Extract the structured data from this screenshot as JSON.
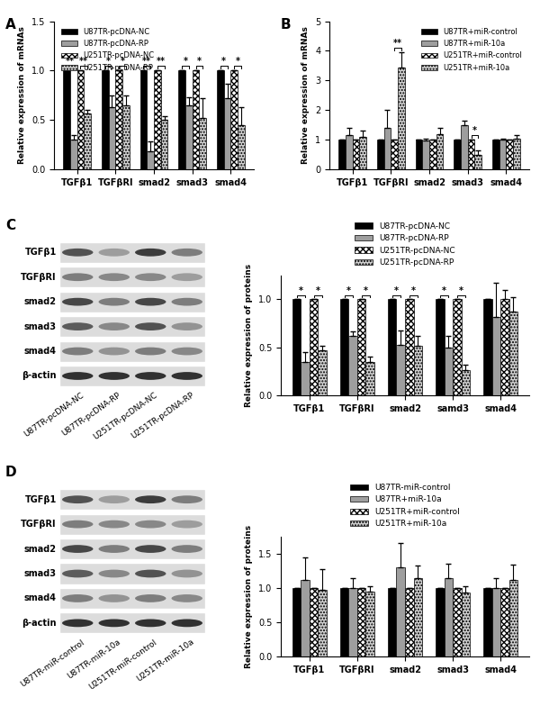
{
  "chart_data": [
    {
      "panel_label": "A",
      "type": "bar",
      "y_label": "Relative expression of mRNAs",
      "categories": [
        "TGFβ1",
        "TGFβRI",
        "smad2",
        "smad3",
        "smad4"
      ],
      "ylim": [
        0,
        1.5
      ],
      "yticks": [
        {
          "value": 0,
          "label": "0.0"
        },
        {
          "value": 0.5,
          "label": "0.5"
        },
        {
          "value": 1.0,
          "label": "1.0"
        },
        {
          "value": 1.5,
          "label": "1.5"
        }
      ],
      "legend": "upper left",
      "series": [
        {
          "name": "U87TR-pcDNA-NC",
          "color": "#000000",
          "values": [
            1,
            1,
            1,
            1,
            1
          ],
          "errors": [
            0,
            0,
            0,
            0,
            0
          ]
        },
        {
          "name": "U87TR-pcDNA-RP",
          "color": "#9e9e9e",
          "values": [
            0.3,
            0.63,
            0.18,
            0.65,
            0.72
          ],
          "errors": [
            0.05,
            0.12,
            0.1,
            0.08,
            0.15
          ]
        },
        {
          "name": "U251TR-pcDNA-NC",
          "color": "#ffffff",
          "values": [
            1,
            1,
            1,
            1,
            1
          ],
          "errors": [
            0,
            0,
            0,
            0,
            0
          ]
        },
        {
          "name": "U251TR-pcDNA-RP",
          "color": "#d0d0d0",
          "values": [
            0.57,
            0.65,
            0.5,
            0.52,
            0.45
          ],
          "errors": [
            0.03,
            0.1,
            0.04,
            0.2,
            0.18
          ]
        }
      ],
      "annotations": [
        {
          "category": 0,
          "series": [
            0,
            1
          ],
          "text": "**"
        },
        {
          "category": 0,
          "series": [
            2,
            3
          ],
          "text": "**"
        },
        {
          "category": 1,
          "series": [
            0,
            1
          ],
          "text": "*"
        },
        {
          "category": 1,
          "series": [
            2,
            3
          ],
          "text": "*"
        },
        {
          "category": 2,
          "series": [
            0,
            1
          ],
          "text": "**"
        },
        {
          "category": 2,
          "series": [
            2,
            3
          ],
          "text": "**"
        },
        {
          "category": 3,
          "series": [
            0,
            1
          ],
          "text": "*"
        },
        {
          "category": 3,
          "series": [
            2,
            3
          ],
          "text": "*"
        },
        {
          "category": 4,
          "series": [
            0,
            1
          ],
          "text": "*"
        },
        {
          "category": 4,
          "series": [
            2,
            3
          ],
          "text": "*"
        }
      ]
    },
    {
      "panel_label": "B",
      "type": "bar",
      "y_label": "Relative expression of mRNAs",
      "categories": [
        "TGFβ1",
        "TGFβRI",
        "smad2",
        "smad3",
        "smad4"
      ],
      "ylim": [
        0,
        5
      ],
      "yticks": [
        0,
        1,
        2,
        3,
        4,
        5
      ],
      "legend": "upper right",
      "series": [
        {
          "name": "U87TR+miR-control",
          "color": "#000000",
          "values": [
            1,
            1,
            1,
            1,
            1
          ],
          "errors": [
            0,
            0,
            0,
            0,
            0
          ]
        },
        {
          "name": "U87TR+miR-10a",
          "color": "#9e9e9e",
          "values": [
            1.15,
            1.4,
            0.98,
            1.5,
            1.0
          ],
          "errors": [
            0.25,
            0.6,
            0.05,
            0.15,
            0.05
          ]
        },
        {
          "name": "U251TR+miR-control",
          "color": "#ffffff",
          "values": [
            1,
            1,
            1,
            1,
            1
          ],
          "errors": [
            0,
            0,
            0,
            0,
            0
          ]
        },
        {
          "name": "U251TR+miR-10a",
          "color": "#d0d0d0",
          "values": [
            1.1,
            3.45,
            1.2,
            0.5,
            1.05
          ],
          "errors": [
            0.2,
            0.5,
            0.2,
            0.15,
            0.1
          ]
        }
      ],
      "annotations": [
        {
          "category": 1,
          "series": [
            2,
            3
          ],
          "text": "**"
        },
        {
          "category": 3,
          "series": [
            2,
            3
          ],
          "text": "*"
        }
      ]
    },
    {
      "panel_label": "C",
      "type": "bar",
      "y_label": "Relative expression of proteins",
      "categories": [
        "TGFβ1",
        "TGFβRI",
        "smad2",
        "samd3",
        "smad4"
      ],
      "ylim": [
        0,
        1.25
      ],
      "yticks": [
        {
          "value": 0,
          "label": "0.0"
        },
        {
          "value": 0.5,
          "label": "0.5"
        },
        {
          "value": 1.0,
          "label": "1.0"
        }
      ],
      "legend": "upper center",
      "series": [
        {
          "name": "U87TR-pcDNA-NC",
          "color": "#000000",
          "values": [
            1,
            1,
            1,
            1,
            1
          ],
          "errors": [
            0,
            0,
            0,
            0,
            0
          ]
        },
        {
          "name": "U87TR-pcDNA-RP",
          "color": "#9e9e9e",
          "values": [
            0.35,
            0.62,
            0.53,
            0.5,
            0.82
          ],
          "errors": [
            0.1,
            0.05,
            0.15,
            0.12,
            0.35
          ]
        },
        {
          "name": "U251TR-pcDNA-NC",
          "color": "#ffffff",
          "values": [
            1,
            1,
            1,
            1,
            1
          ],
          "errors": [
            0,
            0,
            0,
            0,
            0.1
          ]
        },
        {
          "name": "U251TR-pcDNA-RP",
          "color": "#d0d0d0",
          "values": [
            0.47,
            0.35,
            0.52,
            0.26,
            0.87
          ],
          "errors": [
            0.05,
            0.05,
            0.1,
            0.06,
            0.15
          ]
        }
      ],
      "annotations": [
        {
          "category": 0,
          "series": [
            0,
            1
          ],
          "text": "*"
        },
        {
          "category": 0,
          "series": [
            2,
            3
          ],
          "text": "*"
        },
        {
          "category": 1,
          "series": [
            0,
            1
          ],
          "text": "*"
        },
        {
          "category": 1,
          "series": [
            2,
            3
          ],
          "text": "*"
        },
        {
          "category": 2,
          "series": [
            0,
            1
          ],
          "text": "*"
        },
        {
          "category": 2,
          "series": [
            2,
            3
          ],
          "text": "*"
        },
        {
          "category": 3,
          "series": [
            0,
            1
          ],
          "text": "*"
        },
        {
          "category": 3,
          "series": [
            2,
            3
          ],
          "text": "*"
        }
      ]
    },
    {
      "panel_label": "D",
      "type": "bar",
      "y_label": "Relative expression of proteins",
      "categories": [
        "TGFβ1",
        "TGFβRI",
        "smad2",
        "smad3",
        "smad4"
      ],
      "ylim": [
        0,
        1.75
      ],
      "yticks": [
        {
          "value": 0,
          "label": "0.0"
        },
        {
          "value": 0.5,
          "label": "0.5"
        },
        {
          "value": 1.0,
          "label": "1.0"
        },
        {
          "value": 1.5,
          "label": "1.5"
        }
      ],
      "legend": "upper center",
      "series": [
        {
          "name": "U87TR-miR-control",
          "color": "#000000",
          "values": [
            1,
            1,
            1,
            1,
            1
          ],
          "errors": [
            0,
            0,
            0,
            0,
            0
          ]
        },
        {
          "name": "U87TR+miR-10a",
          "color": "#9e9e9e",
          "values": [
            1.12,
            1.0,
            1.3,
            1.15,
            1.0
          ],
          "errors": [
            0.32,
            0.15,
            0.35,
            0.2,
            0.15
          ]
        },
        {
          "name": "U251TR+miR-control",
          "color": "#ffffff",
          "values": [
            1,
            1,
            1,
            1,
            1
          ],
          "errors": [
            0,
            0,
            0,
            0,
            0
          ]
        },
        {
          "name": "U251TR+miR-10a",
          "color": "#d0d0d0",
          "values": [
            0.97,
            0.95,
            1.15,
            0.93,
            1.12
          ],
          "errors": [
            0.3,
            0.08,
            0.18,
            0.1,
            0.22
          ]
        }
      ],
      "annotations": []
    }
  ],
  "blots": [
    {
      "rows": [
        "TGFβ1",
        "TGFβRI",
        "smad2",
        "smad3",
        "smad4",
        "β-actin"
      ],
      "lanes": [
        "U87TR-pcDNA-NC",
        "U87TR-pcDNA-RP",
        "U251TR-pcDNA-NC",
        "U251TR-pcDNA-RP"
      ]
    },
    {
      "rows": [
        "TGFβ1",
        "TGFβRI",
        "smad2",
        "smad3",
        "smad4",
        "β-actin"
      ],
      "lanes": [
        "U87TR-miR-control",
        "U87TR-miR-10a",
        "U251TR-miR-control",
        "U251TR-miR-10a"
      ]
    }
  ]
}
